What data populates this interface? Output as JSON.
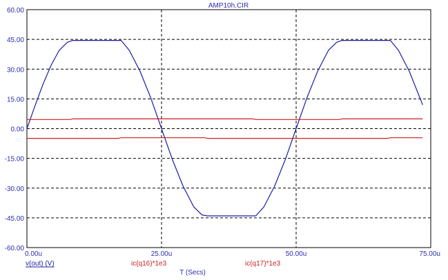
{
  "chart_data": {
    "type": "line",
    "title": "AMP10h.CIR",
    "xlabel": "T (Secs)",
    "ylabel": "",
    "xlim": [
      0,
      75
    ],
    "ylim": [
      -60,
      60
    ],
    "x_ticks": [
      0,
      25,
      50,
      75
    ],
    "x_tick_labels": [
      "0.00u",
      "25.00u",
      "50.00u",
      "75.00u"
    ],
    "y_ticks": [
      60,
      45,
      30,
      15,
      0,
      -15,
      -30,
      -45,
      -60
    ],
    "y_tick_labels": [
      "60.00",
      "45.00",
      "30.00",
      "15.00",
      "0.00",
      "-15.00",
      "-30.00",
      "-45.00",
      "-60.00"
    ],
    "grid": true,
    "grid_style": "dashed",
    "legend_placement": "bottom",
    "series": [
      {
        "name": "v(out) (V)",
        "color": "#1a1aa6",
        "x": [
          0,
          1.5,
          3,
          4.5,
          6,
          7.5,
          8.5,
          17.5,
          19,
          21,
          23,
          25,
          27,
          29,
          31,
          32.5,
          33.5,
          42.5,
          44,
          46,
          48,
          50,
          52,
          54,
          56,
          57.5,
          58.5,
          67.5,
          69,
          71,
          73.5
        ],
        "y": [
          0,
          11.5,
          22.5,
          32,
          39.5,
          43.5,
          44.5,
          44.5,
          39.5,
          29,
          15.5,
          0,
          -15.5,
          -29,
          -39.5,
          -43.5,
          -44,
          -44,
          -39.5,
          -29,
          -15.5,
          0,
          15.5,
          29,
          39.5,
          43.5,
          44.5,
          44.5,
          39.5,
          29,
          12
        ]
      },
      {
        "name": "ic(q16)*1e3",
        "color": "#cc1f1f",
        "x": [
          0,
          8,
          8.5,
          42,
          42.5,
          58,
          58.5,
          73.5
        ],
        "y": [
          4.6,
          4.6,
          4.9,
          4.9,
          4.6,
          4.6,
          4.9,
          4.9
        ]
      },
      {
        "name": "ic(q17)*1e3",
        "color": "#cc1f1f",
        "x": [
          0,
          17,
          17.5,
          33,
          33.5,
          67,
          67.5,
          73.5
        ],
        "y": [
          -4.9,
          -4.9,
          -4.6,
          -4.6,
          -4.9,
          -4.9,
          -4.6,
          -4.6
        ]
      }
    ]
  }
}
